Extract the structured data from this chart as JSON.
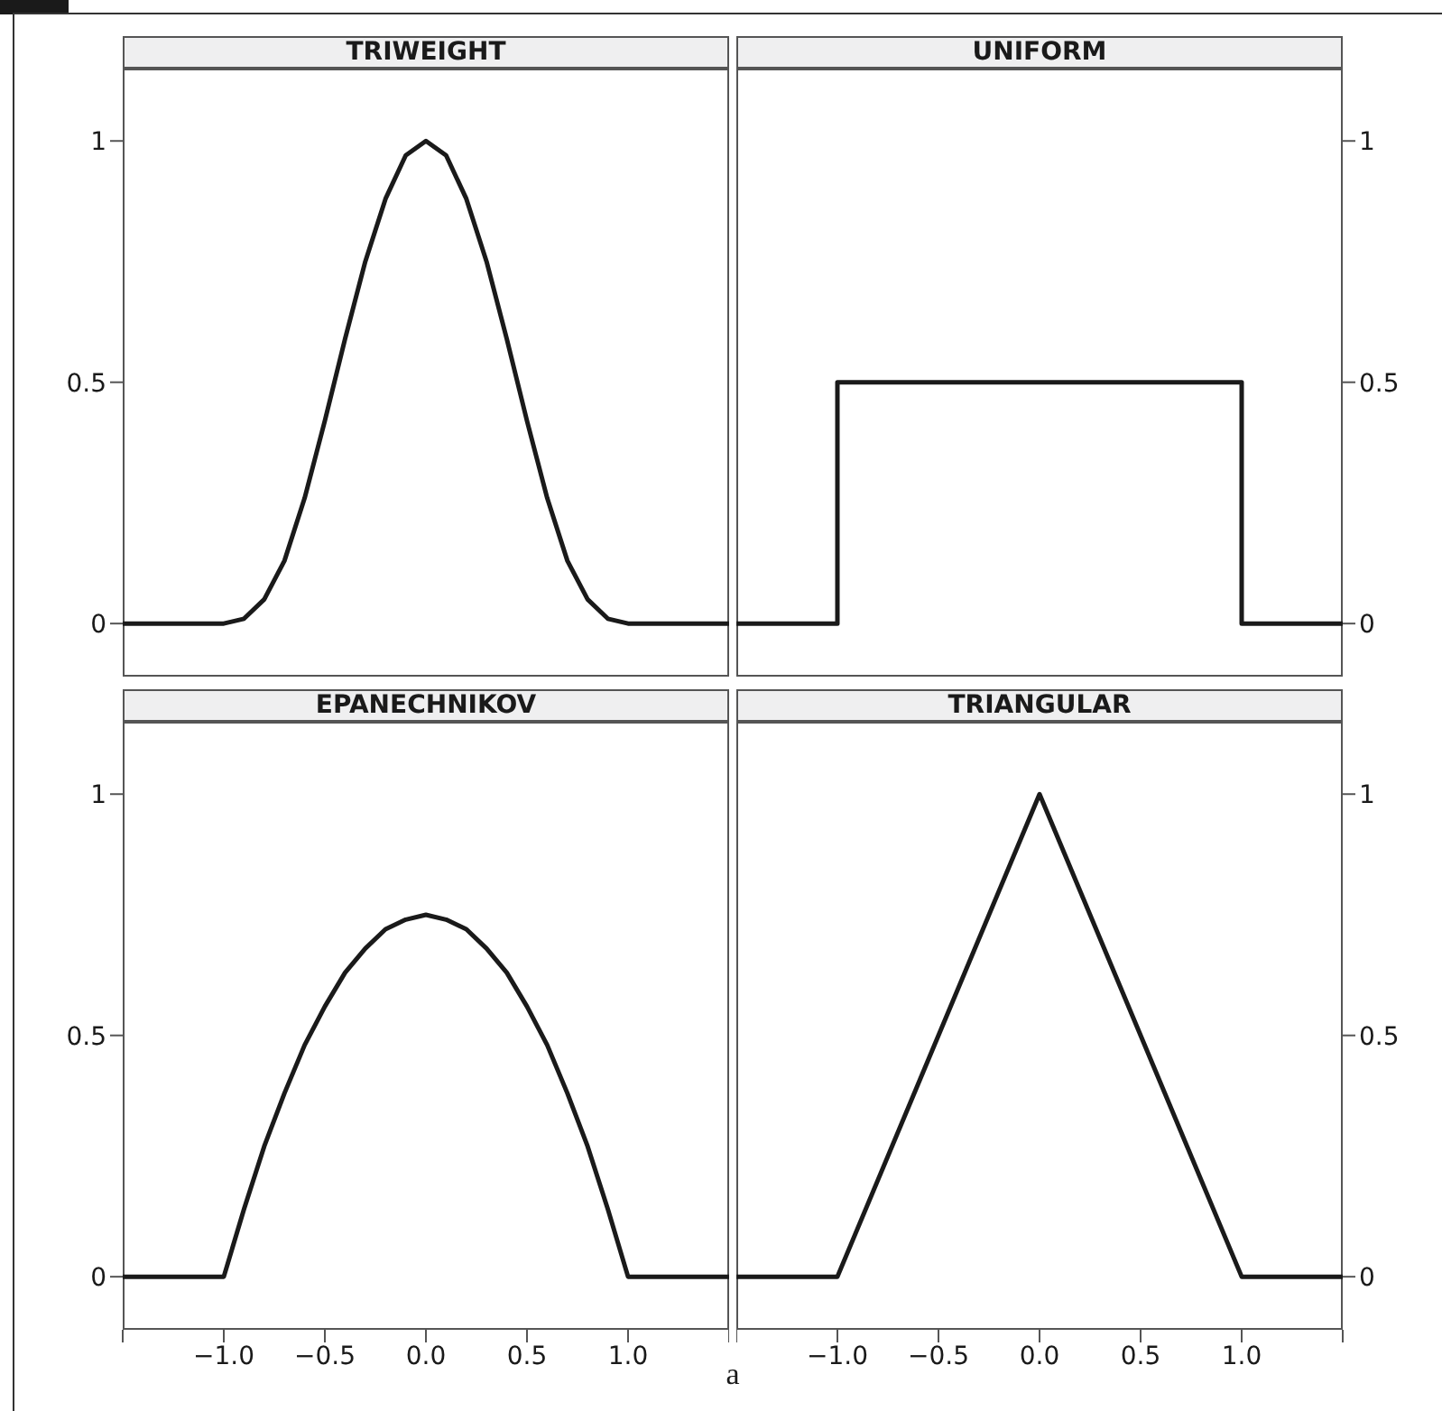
{
  "chart_data": [
    {
      "type": "line",
      "title": "TRIWEIGHT",
      "xlim": [
        -1.5,
        1.5
      ],
      "ylim": [
        -0.11,
        1.15
      ],
      "yticks": [
        0,
        0.5,
        1
      ],
      "tick_labels": "y",
      "series": [
        {
          "color": "#1a1a1a",
          "x": [
            -1.5,
            -1,
            -0.9,
            -0.8,
            -0.7,
            -0.6,
            -0.5,
            -0.4,
            -0.3,
            -0.2,
            -0.1,
            0,
            0.1,
            0.2,
            0.3,
            0.4,
            0.5,
            0.6,
            0.7,
            0.8,
            0.9,
            1,
            1.5
          ],
          "values": [
            0,
            0,
            0.01,
            0.05,
            0.13,
            0.26,
            0.42,
            0.59,
            0.75,
            0.88,
            0.97,
            1,
            0.97,
            0.88,
            0.75,
            0.59,
            0.42,
            0.26,
            0.13,
            0.05,
            0.01,
            0,
            0
          ]
        }
      ]
    },
    {
      "type": "line",
      "title": "UNIFORM",
      "xlim": [
        -1.5,
        1.5
      ],
      "ylim": [
        -0.11,
        1.15
      ],
      "yticks": [
        0,
        0.5,
        1
      ],
      "tick_labels": "y",
      "series": [
        {
          "color": "#1a1a1a",
          "x": [
            -1.5,
            -1,
            -1,
            1,
            1,
            1.5
          ],
          "values": [
            0,
            0,
            0.5,
            0.5,
            0,
            0
          ]
        }
      ]
    },
    {
      "type": "line",
      "title": "EPANECHNIKOV",
      "xlabel": "a",
      "xlim": [
        -1.5,
        1.5
      ],
      "ylim": [
        -0.11,
        1.15
      ],
      "yticks": [
        0,
        0.5,
        1
      ],
      "xticks": [
        {
          "value": -1.5,
          "label": null
        },
        {
          "value": -1,
          "label": "−1.0"
        },
        {
          "value": -0.5,
          "label": "−0.5"
        },
        {
          "value": 0,
          "label": "0.0"
        },
        {
          "value": 0.5,
          "label": "0.5"
        },
        {
          "value": 1,
          "label": "1.0"
        },
        {
          "value": 1.5,
          "label": null
        }
      ],
      "series": [
        {
          "color": "#1a1a1a",
          "x": [
            -1.5,
            -1,
            -0.9,
            -0.8,
            -0.7,
            -0.6,
            -0.5,
            -0.4,
            -0.3,
            -0.2,
            -0.1,
            0,
            0.1,
            0.2,
            0.3,
            0.4,
            0.5,
            0.6,
            0.7,
            0.8,
            0.9,
            1,
            1.5
          ],
          "values": [
            0,
            0,
            0.14,
            0.27,
            0.38,
            0.48,
            0.56,
            0.63,
            0.68,
            0.72,
            0.74,
            0.75,
            0.74,
            0.72,
            0.68,
            0.63,
            0.56,
            0.48,
            0.38,
            0.27,
            0.14,
            0,
            0
          ]
        }
      ]
    },
    {
      "type": "line",
      "title": "TRIANGULAR",
      "xlim": [
        -1.5,
        1.5
      ],
      "ylim": [
        -0.11,
        1.15
      ],
      "yticks": [
        0,
        0.5,
        1
      ],
      "xticks": [
        {
          "value": -1.5,
          "label": null
        },
        {
          "value": -1,
          "label": "−1.0"
        },
        {
          "value": -0.5,
          "label": "−0.5"
        },
        {
          "value": 0,
          "label": "0.0"
        },
        {
          "value": 0.5,
          "label": "0.5"
        },
        {
          "value": 1,
          "label": "1.0"
        },
        {
          "value": 1.5,
          "label": null
        }
      ],
      "series": [
        {
          "color": "#1a1a1a",
          "x": [
            -1.5,
            -1,
            0,
            1,
            1.5
          ],
          "values": [
            0,
            0,
            1,
            0,
            0
          ]
        }
      ]
    }
  ]
}
